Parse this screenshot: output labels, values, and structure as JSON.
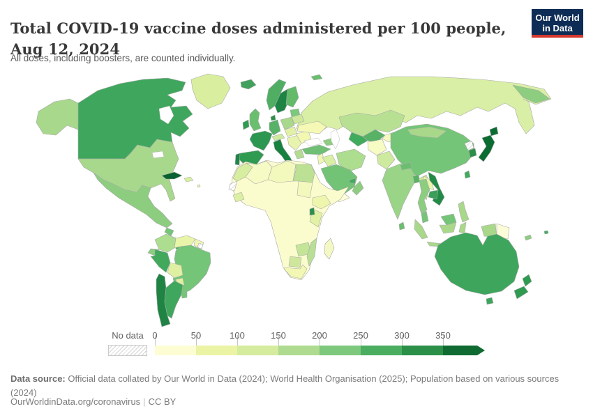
{
  "header": {
    "title": "Total COVID-19 vaccine doses administered per 100 people, Aug 12, 2024",
    "subtitle": "All doses, including boosters, are counted individually.",
    "logo": {
      "line1": "Our World",
      "line2": "in Data",
      "bg": "#0d2d56",
      "accent": "#d4382d"
    }
  },
  "legend": {
    "no_data_label": "No data",
    "stops": [
      "0",
      "50",
      "100",
      "150",
      "200",
      "250",
      "300",
      "350"
    ],
    "colors": [
      "#fdfdd4",
      "#ebf4a5",
      "#d5ec9f",
      "#aedb8f",
      "#7dc87d",
      "#4bad60",
      "#2b8f48",
      "#0f6b31"
    ]
  },
  "map": {
    "no_data_color": "no-data",
    "region_colors": {
      "canada": "#3fa75d",
      "alaska": "#a8d88b",
      "usa": "#a8d88b",
      "greenland": "#d9ef9f",
      "mexico": "#8ccd80",
      "guatemala": "#74c577",
      "honduras_nicaragua": "#e7f3a7",
      "costa_rica_panama": "#4bad60",
      "cuba": "#0b6231",
      "hispaniola": "#d9f0a3",
      "caribbean": "#e8f4a7",
      "colombia": "#addd8e",
      "venezuela": "#e8f4a7",
      "guyana": "#f0f7b2",
      "suriname": "no-data",
      "brazil": "#74c577",
      "ecuador": "#8ccd80",
      "peru": "#41a85c",
      "bolivia": "#dff0a2",
      "paraguay": "#dff0a2",
      "chile": "#1f8443",
      "argentina": "#3fa75d",
      "uruguay": "#74c577",
      "iceland": "#41a05c",
      "norway": "#4fae62",
      "sweden": "#1d8444",
      "finland": "#63ba69",
      "baltics": "#7cc87c",
      "belarus": "#cde89c",
      "denmark": "#2c8f49",
      "uk": "#6abf6e",
      "ireland": "#2f9b51",
      "germany": "#57b267",
      "poland": "#a8d88b",
      "france": "#2c9750",
      "spain": "#2f9b51",
      "portugal": "#1e8745",
      "alpine": "#cdea9e",
      "italy": "#17813f",
      "czech_hungary": "#e3f1a6",
      "balkans": "#e8f4ae",
      "greece": "#b3dc90",
      "romania_bulgaria": "#f2f7b2",
      "ukraine": "#f5f9b5",
      "russia": "#d9efa5",
      "chukotka": "#8ccd80",
      "svalbard": "#6abf6e",
      "turkey": "#6fbf74",
      "caucasus": "#8ccd80",
      "levant": "#eff6b4",
      "iraq": "#d9efa3",
      "saudi_arabia": "#72c376",
      "yemen": "#fdfdd6",
      "oman": "#8ccd80",
      "uae": "#41ab5d",
      "iran": "#addd8e",
      "kazakhstan": "#b7e093",
      "uzbekistan": "#57b266",
      "turkmenistan": "#41ab5d",
      "kyrgyzstan_tajikistan": "#f5f9c0",
      "afghanistan": "#f7fbc4",
      "pakistan": "#cdea9e",
      "india": "#9ad487",
      "nepal": "#6abf6e",
      "bangladesh": "#57b266",
      "sri_lanka": "#6abf6e",
      "myanmar": "#c9e79b",
      "china": "#74c577",
      "mongolia": "#a9d88b",
      "north_korea": "no-data",
      "south_korea": "#2d8f4a",
      "japan": "#0b6c31",
      "taiwan": "#41ab5d",
      "vietnam": "#218a47",
      "laos": "#e9f5a8",
      "thailand": "#8ccd80",
      "cambodia": "#3a9f58",
      "malaysia": "#74c577",
      "indonesia": "#a9d88b",
      "borneo_malaysia": "#74c577",
      "papua_new_guinea": "#fcfcd8",
      "philippines": "#a9d88b",
      "australia": "#3ea55d",
      "new_zealand": "#2f9b51",
      "fiji": "#41ab5d",
      "new_caledonia": "#8ccd80",
      "madagascar": "#f4f9c4",
      "africa_base": "#fbfcce",
      "morocco": "#d7ed9f",
      "algeria": "#f6fac4",
      "libya": "#f3f8bc",
      "egypt": "#bce094",
      "western_sahara": "no-data",
      "senegal_region": "#dcefa2",
      "sudan": "#f3f8bc",
      "ethiopia": "#eef6ae",
      "kenya_tanzania": "#e3f1a4",
      "uganda_rwanda": "#2d8f4a",
      "zambia_zimbabwe": "#c4e598",
      "mozambique": "#b9df96",
      "botswana": "#cfe79d",
      "south_africa": "#f2f8b4"
    }
  },
  "footer": {
    "source_label": "Data source:",
    "source_text": " Official data collated by Our World in Data (2024); World Health Organisation (2025); Population based on various sources (2024)",
    "link": "OurWorldinData.org/coronavirus",
    "separator": "|",
    "license": "CC BY"
  }
}
